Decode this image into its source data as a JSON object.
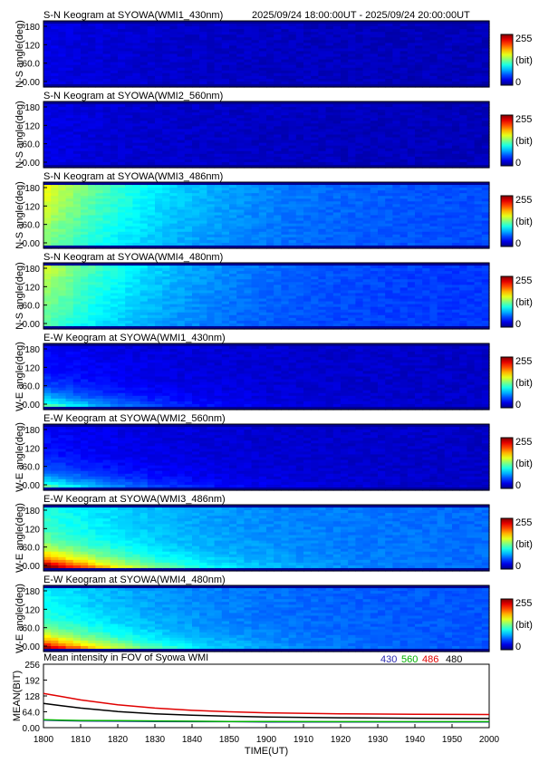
{
  "header": {
    "time_range": "2025/09/24 18:00:00UT - 2025/09/24 20:00:00UT"
  },
  "colorbar": {
    "max_label": "255",
    "unit_label": "(bit)",
    "min_label": "0"
  },
  "ytick_labels": [
    "180",
    "120",
    "60.0",
    "0.00"
  ],
  "panels": [
    {
      "title": "S-N Keogram at SYOWA(WMI1_430nm)",
      "ylabel": "N-S angle(deg)",
      "kind": "sn",
      "level": 0.1
    },
    {
      "title": "S-N Keogram at SYOWA(WMI2_560nm)",
      "ylabel": "N-S angle(deg)",
      "kind": "sn",
      "level": 0.1
    },
    {
      "title": "S-N Keogram at SYOWA(WMI3_486nm)",
      "ylabel": "N-S angle(deg)",
      "kind": "sn",
      "level": 0.34
    },
    {
      "title": "S-N Keogram at SYOWA(WMI4_480nm)",
      "ylabel": "N-S angle(deg)",
      "kind": "sn",
      "level": 0.3
    },
    {
      "title": "E-W Keogram at SYOWA(WMI1_430nm)",
      "ylabel": "W-E angle(deg)",
      "kind": "ew",
      "level": 0.12
    },
    {
      "title": "E-W Keogram at SYOWA(WMI2_560nm)",
      "ylabel": "W-E angle(deg)",
      "kind": "ew",
      "level": 0.12
    },
    {
      "title": "E-W Keogram at SYOWA(WMI3_486nm)",
      "ylabel": "W-E angle(deg)",
      "kind": "ew",
      "level": 0.4
    },
    {
      "title": "E-W Keogram at SYOWA(WMI4_480nm)",
      "ylabel": "W-E angle(deg)",
      "kind": "ew",
      "level": 0.36
    }
  ],
  "chart_data": {
    "type": "line",
    "title": "Mean intensity in FOV of Syowa WMI",
    "xlabel": "TIME(UT)",
    "ylabel": "MEAN(BIT)",
    "xlim": [
      1800,
      2000
    ],
    "ylim": [
      0,
      256
    ],
    "xtick_labels": [
      "1800",
      "1810",
      "1820",
      "1830",
      "1840",
      "1850",
      "1900",
      "1910",
      "1920",
      "1930",
      "1940",
      "1950",
      "2000"
    ],
    "ytick_labels": [
      "256",
      "192",
      "128",
      "64.0",
      "0.00"
    ],
    "ytick_values": [
      256,
      192,
      128,
      64,
      0
    ],
    "x_minutes": [
      0,
      5,
      10,
      20,
      30,
      40,
      50,
      60,
      80,
      100,
      120
    ],
    "series": [
      {
        "name": "430",
        "color": "#2a2ab0",
        "values": [
          30,
          28,
          27,
          26,
          25,
          24,
          24,
          23,
          23,
          23,
          23
        ]
      },
      {
        "name": "560",
        "color": "#00b000",
        "values": [
          32,
          30,
          29,
          28,
          27,
          26,
          25,
          25,
          24,
          24,
          24
        ]
      },
      {
        "name": "486",
        "color": "#e00000",
        "values": [
          138,
          125,
          112,
          92,
          79,
          70,
          64,
          60,
          56,
          54,
          53
        ]
      },
      {
        "name": "480",
        "color": "#000000",
        "values": [
          98,
          88,
          79,
          65,
          56,
          50,
          46,
          43,
          40,
          38,
          37
        ]
      }
    ]
  }
}
